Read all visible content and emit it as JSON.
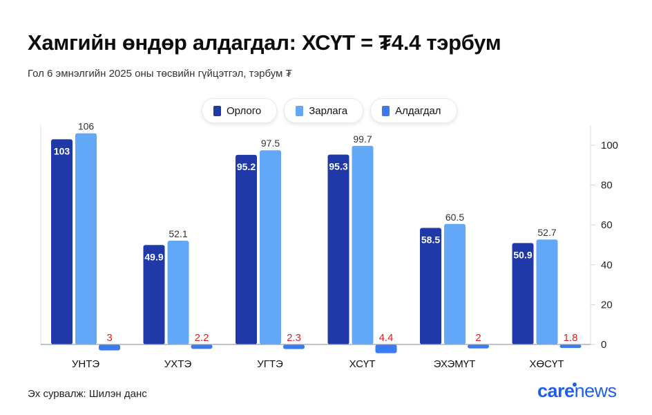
{
  "header": {
    "title": "Хамгийн өндөр алдагдал: ХСҮТ = ₮4.4 тэрбум",
    "subtitle": "Гол 6 эмнэлгийн 2025 оны төсвийн гүйцэтгэл, тэрбум ₮"
  },
  "footer": {
    "source": "Эх сурвалж: Шилэн данс",
    "logo_part1": "care",
    "logo_part2": "news"
  },
  "colors": {
    "income": "#1f3aa8",
    "expense": "#63a8f7",
    "deficit": "#3a7cf0",
    "deficit_label": "#e02020",
    "accent": "#1f5fe8"
  },
  "chart_data": {
    "type": "bar",
    "categories": [
      "УНТЭ",
      "УХТЭ",
      "УГТЭ",
      "ХСҮТ",
      "ЭХЭМҮТ",
      "ХӨСҮТ"
    ],
    "series": [
      {
        "name": "Орлого",
        "values": [
          103,
          49.9,
          95.2,
          95.3,
          58.5,
          50.9
        ]
      },
      {
        "name": "Зарлага",
        "values": [
          106,
          52.1,
          97.5,
          99.7,
          60.5,
          52.7
        ]
      },
      {
        "name": "Алдагдал",
        "values": [
          -3,
          -2.2,
          -2.3,
          -4.4,
          -2,
          -1.8
        ]
      }
    ],
    "data_labels": {
      "Орлого": [
        "103",
        "49.9",
        "95.2",
        "95.3",
        "58.5",
        "50.9"
      ],
      "Зарлага": [
        "106",
        "52.1",
        "97.5",
        "99.7",
        "60.5",
        "52.7"
      ],
      "Алдагдал": [
        "3",
        "2.2",
        "2.3",
        "4.4",
        "2",
        "1.8"
      ]
    },
    "y_ticks": [
      0,
      20,
      40,
      60,
      80,
      100
    ],
    "ylim": [
      -5,
      110
    ],
    "y_axis_side": "right",
    "grid": false,
    "legend": "top-center"
  }
}
